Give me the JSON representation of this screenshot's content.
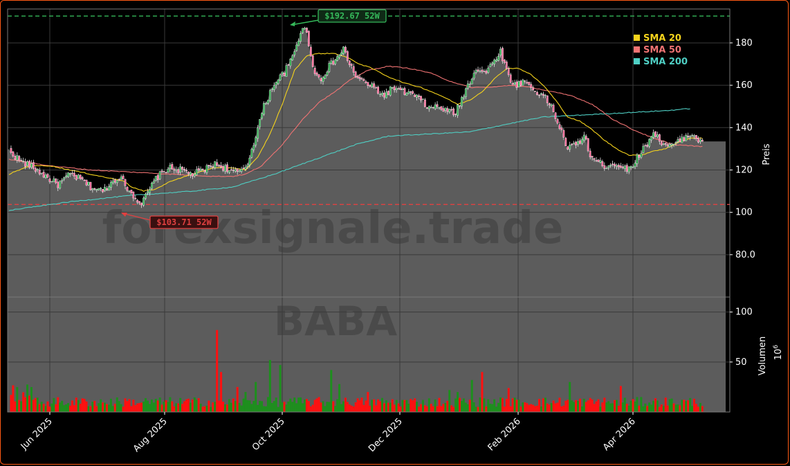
{
  "chart_data": {
    "type": "candlestick",
    "watermark": {
      "site": "forexsignale.trade",
      "symbol": "BABA"
    },
    "x_ticks": [
      "Jun 2025",
      "Aug 2025",
      "Oct 2025",
      "Dec 2025",
      "Feb 2026",
      "Apr 2026"
    ],
    "price_axis": {
      "label": "Preis",
      "ticks": [
        "180",
        "160",
        "140",
        "120",
        "100",
        "80.0"
      ],
      "ylim": [
        60,
        196
      ]
    },
    "volume_axis": {
      "label": "Volumen",
      "multiplier": "10",
      "exponent": "6",
      "ticks": [
        "100",
        "50"
      ],
      "ylim": [
        0,
        115
      ]
    },
    "legend": [
      {
        "name": "SMA 20",
        "color": "#f5d31c"
      },
      {
        "name": "SMA 50",
        "color": "#f07373"
      },
      {
        "name": "SMA 200",
        "color": "#4fcfc4"
      }
    ],
    "annotations": {
      "high": {
        "label": "$192.67 52W",
        "value": 192.67,
        "color": "#35b85a"
      },
      "low": {
        "label": "$103.71 52W",
        "value": 103.71,
        "color": "#e04040"
      }
    },
    "price_anchors": [
      [
        0,
        129
      ],
      [
        6,
        124
      ],
      [
        12,
        121
      ],
      [
        18,
        117
      ],
      [
        24,
        113
      ],
      [
        30,
        118
      ],
      [
        36,
        115
      ],
      [
        40,
        112
      ],
      [
        46,
        110
      ],
      [
        50,
        114
      ],
      [
        54,
        117
      ],
      [
        57,
        113
      ],
      [
        60,
        109
      ],
      [
        63,
        106
      ],
      [
        65,
        104
      ],
      [
        68,
        109
      ],
      [
        72,
        116
      ],
      [
        78,
        121
      ],
      [
        84,
        120
      ],
      [
        90,
        118
      ],
      [
        96,
        120
      ],
      [
        100,
        123
      ],
      [
        106,
        121
      ],
      [
        110,
        119
      ],
      [
        114,
        119
      ],
      [
        117,
        123
      ],
      [
        120,
        133
      ],
      [
        125,
        150
      ],
      [
        130,
        161
      ],
      [
        135,
        166
      ],
      [
        139,
        173
      ],
      [
        142,
        182
      ],
      [
        144,
        188
      ],
      [
        146,
        184
      ],
      [
        148,
        175
      ],
      [
        150,
        165
      ],
      [
        153,
        163
      ],
      [
        157,
        169
      ],
      [
        160,
        172
      ],
      [
        164,
        177
      ],
      [
        167,
        170
      ],
      [
        171,
        163
      ],
      [
        175,
        161
      ],
      [
        180,
        158
      ],
      [
        184,
        155
      ],
      [
        188,
        159
      ],
      [
        192,
        157
      ],
      [
        197,
        156
      ],
      [
        202,
        153
      ],
      [
        206,
        149
      ],
      [
        210,
        150
      ],
      [
        214,
        148
      ],
      [
        219,
        147
      ],
      [
        224,
        158
      ],
      [
        229,
        168
      ],
      [
        234,
        166
      ],
      [
        238,
        172
      ],
      [
        241,
        176
      ],
      [
        245,
        164
      ],
      [
        248,
        160
      ],
      [
        253,
        162
      ],
      [
        257,
        158
      ],
      [
        262,
        155
      ],
      [
        266,
        150
      ],
      [
        270,
        140
      ],
      [
        274,
        130
      ],
      [
        278,
        132
      ],
      [
        282,
        136
      ],
      [
        285,
        127
      ],
      [
        288,
        124
      ],
      [
        292,
        122
      ],
      [
        296,
        123
      ],
      [
        300,
        122
      ],
      [
        304,
        120
      ],
      [
        308,
        126
      ],
      [
        312,
        131
      ],
      [
        316,
        138
      ],
      [
        320,
        133
      ],
      [
        324,
        131
      ],
      [
        328,
        133
      ],
      [
        332,
        136
      ],
      [
        336,
        137
      ],
      [
        338,
        134
      ],
      [
        340,
        134
      ]
    ],
    "sma20_anchors": [
      [
        0,
        118
      ],
      [
        10,
        122
      ],
      [
        20,
        122
      ],
      [
        30,
        120
      ],
      [
        40,
        118
      ],
      [
        50,
        116
      ],
      [
        56,
        115
      ],
      [
        60,
        112
      ],
      [
        66,
        110
      ],
      [
        72,
        111
      ],
      [
        80,
        115
      ],
      [
        90,
        118
      ],
      [
        100,
        121
      ],
      [
        110,
        121
      ],
      [
        116,
        120
      ],
      [
        122,
        126
      ],
      [
        128,
        137
      ],
      [
        134,
        151
      ],
      [
        140,
        167
      ],
      [
        146,
        174
      ],
      [
        152,
        175
      ],
      [
        160,
        175
      ],
      [
        166,
        173
      ],
      [
        172,
        170
      ],
      [
        178,
        168
      ],
      [
        186,
        164
      ],
      [
        194,
        161
      ],
      [
        202,
        159
      ],
      [
        212,
        155
      ],
      [
        220,
        151
      ],
      [
        226,
        153
      ],
      [
        232,
        157
      ],
      [
        238,
        163
      ],
      [
        244,
        168
      ],
      [
        250,
        168
      ],
      [
        256,
        165
      ],
      [
        262,
        160
      ],
      [
        268,
        153
      ],
      [
        274,
        145
      ],
      [
        280,
        143
      ],
      [
        286,
        139
      ],
      [
        292,
        134
      ],
      [
        298,
        130
      ],
      [
        304,
        127
      ],
      [
        310,
        127
      ],
      [
        316,
        129
      ],
      [
        322,
        130
      ],
      [
        328,
        133
      ],
      [
        334,
        135
      ],
      [
        340,
        135
      ]
    ],
    "sma50_anchors": [
      [
        0,
        125
      ],
      [
        20,
        122
      ],
      [
        40,
        120
      ],
      [
        60,
        119
      ],
      [
        80,
        118
      ],
      [
        100,
        117
      ],
      [
        110,
        117
      ],
      [
        116,
        118
      ],
      [
        124,
        122
      ],
      [
        134,
        132
      ],
      [
        144,
        144
      ],
      [
        152,
        152
      ],
      [
        160,
        157
      ],
      [
        168,
        163
      ],
      [
        176,
        167
      ],
      [
        186,
        169
      ],
      [
        196,
        168
      ],
      [
        206,
        166
      ],
      [
        216,
        162
      ],
      [
        226,
        159
      ],
      [
        236,
        159
      ],
      [
        246,
        160
      ],
      [
        256,
        159
      ],
      [
        266,
        157
      ],
      [
        276,
        155
      ],
      [
        286,
        151
      ],
      [
        296,
        144
      ],
      [
        306,
        139
      ],
      [
        316,
        135
      ],
      [
        326,
        132
      ],
      [
        340,
        131
      ]
    ],
    "sma200_anchors": [
      [
        0,
        101
      ],
      [
        30,
        105
      ],
      [
        60,
        108
      ],
      [
        90,
        110
      ],
      [
        110,
        112
      ],
      [
        130,
        118
      ],
      [
        150,
        125
      ],
      [
        170,
        132
      ],
      [
        186,
        136
      ],
      [
        206,
        137
      ],
      [
        226,
        138
      ],
      [
        236,
        140
      ],
      [
        246,
        142
      ],
      [
        262,
        145
      ],
      [
        282,
        146
      ],
      [
        302,
        147
      ],
      [
        322,
        148
      ],
      [
        334,
        149
      ]
    ]
  }
}
